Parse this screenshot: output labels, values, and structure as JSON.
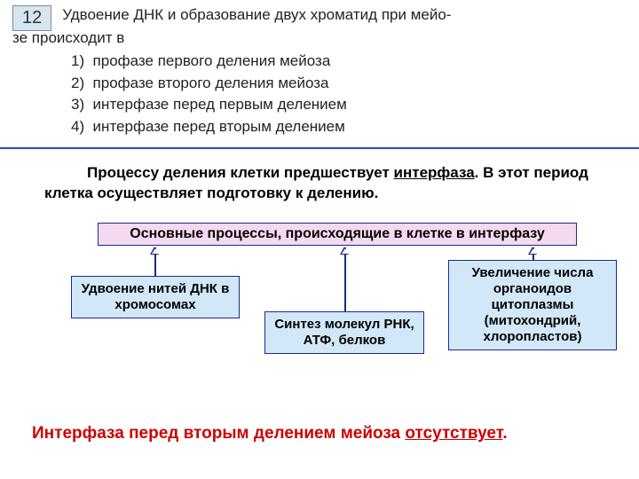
{
  "question": {
    "number": "12",
    "text_line1": "Удвоение ДНК и образование двух хроматид при мейо-",
    "text_line2": "зе происходит в",
    "options": [
      "1)  профазе первого деления мейоза",
      "2)  профазе второго деления мейоза",
      "3)  интерфазе перед первым делением",
      "4)  интерфазе перед вторым делением"
    ]
  },
  "paragraph": {
    "p1a": "Процессу деления клетки предшествует ",
    "p1u": "интерфаза",
    "p1b": ". В этот период клетка осуществляет подготовку к делению."
  },
  "diagram": {
    "main": "Основные процессы, происходящие в клетке в интерфазу",
    "box_left": "Удвоение нитей ДНК в хромосомах",
    "box_mid": "Синтез молекул РНК, АТФ, белков",
    "box_right": "Увеличение числа органоидов цитоплазмы (митохондрий, хлоропластов)",
    "colors": {
      "main_bg": "#f4d9f0",
      "sub_bg": "#d2e7f7",
      "border": "#1a2a8a",
      "divider": "#2a4bd6",
      "qnum_bg": "#d5e5f2"
    }
  },
  "bottom": {
    "a": "Интерфаза перед вторым делением мейоза ",
    "u": "отсутствует",
    "b": "."
  }
}
